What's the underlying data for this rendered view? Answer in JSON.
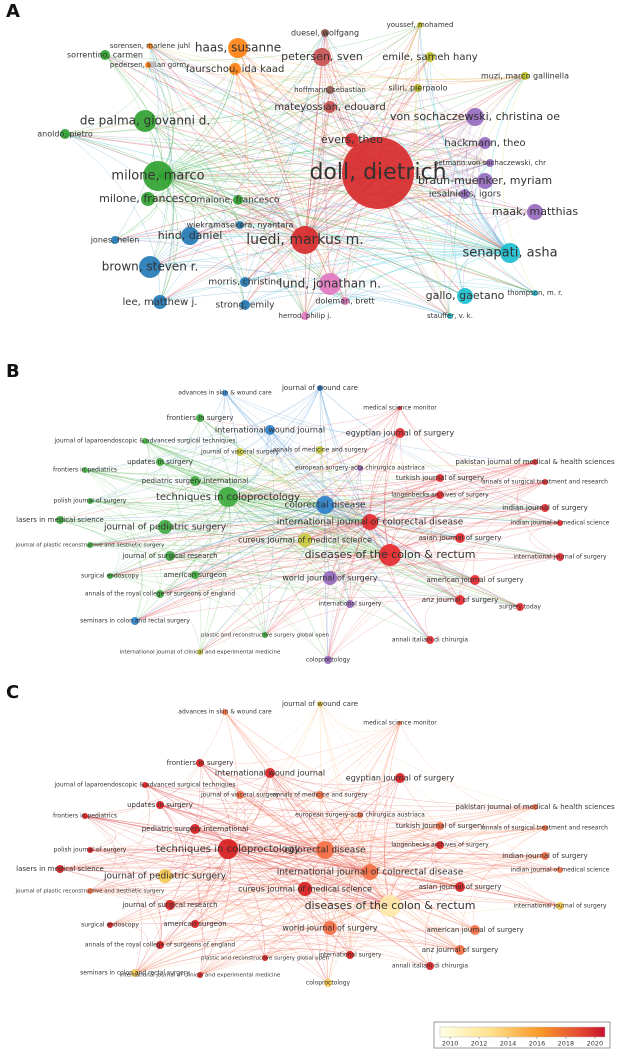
{
  "figure": {
    "panels": [
      {
        "letter": "A",
        "nodes": [
          "doll, dietrich",
          "luedi, markus m.",
          "milone, marco",
          "milone, francesco",
          "de palma, giovanni d.",
          "haas, susanne",
          "faurschou, ida kaad",
          "petersen, sven",
          "mateyossian, edouard",
          "evers, theo",
          "von sochaczewski, christina oe",
          "hackmann, theo",
          "braun-muenker, myriam",
          "iesalnieks, igors",
          "maak, matthias",
          "senapati, asha",
          "gallo, gaetano",
          "lund, jonathan n.",
          "hind, daniel",
          "brown, steven r.",
          "lee, matthew j.",
          "emile, sameh hany",
          "sorrentino, carmen",
          "anoldo, pietro",
          "jones, helen",
          "maione, francesco",
          "morris, christine",
          "strong, emily",
          "wiekramasekera, nyantara",
          "duesel, wolfgang",
          "youssef, mohamed",
          "siliri, pierpaolo",
          "muzi, marco gallinella",
          "oetmann von sochaczewski, chr",
          "thompson, m. r.",
          "doleman, brett",
          "stauffer, v. k.",
          "sorensen, marlene juhl",
          "pedersen, lillian gorm",
          "hoffmann, sebastian",
          "herrod, philip j."
        ]
      },
      {
        "letter": "B",
        "nodes": [
          "journal of wound care",
          "advances in skin & wound care",
          "medical science monitor",
          "frontiers in surgery",
          "international wound journal",
          "egyptian journal of surgery",
          "journal of laparoendoscopic & advanced surgical techniques",
          "journal of visceral surgery",
          "annals of medicine and surgery",
          "frontiers in pediatrics",
          "updates in surgery",
          "pakistan journal of medical & health sciences",
          "european surgery-acta chirurgica austriaca",
          "pediatric surgery international",
          "turkish journal of surgery",
          "annals of surgical treatment and research",
          "techniques in coloproctology",
          "polish journal of surgery",
          "colorectal disease",
          "langenbecks archives of surgery",
          "indian journal of surgery",
          "lasers in medical science",
          "international journal of colorectal disease",
          "journal of pediatric surgery",
          "indian journal of medical science",
          "asian journal of surgery",
          "cureus journal of medical science",
          "journal of plastic reconstructive and aesthetic surgery",
          "journal of surgical research",
          "diseases of the colon & rectum",
          "international journal of surgery",
          "surgical endoscopy",
          "american surgeon",
          "world journal of surgery",
          "american journal of surgery",
          "annals of the royal college of surgeons of england",
          "anz journal of surgery",
          "international surgery",
          "surgery today",
          "seminars in colon and rectal surgery",
          "plastic and reconstructive surgery global open",
          "annali italiani di chirurgia",
          "international journal of clinical and experimental medicine",
          "coloproctology"
        ]
      },
      {
        "letter": "C",
        "nodes": [
          "journal of wound care",
          "advances in skin & wound care",
          "medical science monitor",
          "frontiers in surgery",
          "international wound journal",
          "egyptian journal of surgery",
          "journal of laparoendoscopic & advanced surgical techniques",
          "journal of visceral surgery",
          "annals of medicine and surgery",
          "frontiers in pediatrics",
          "updates in surgery",
          "pakistan journal of medical & health sciences",
          "european surgery-acta chirurgica austriaca",
          "pediatric surgery international",
          "turkish journal of surgery",
          "annals of surgical treatment and research",
          "techniques in coloproctology",
          "polish journal of surgery",
          "colorectal disease",
          "langenbecks archives of surgery",
          "indian journal of surgery",
          "lasers in medical science",
          "international journal of colorectal disease",
          "journal of pediatric surgery",
          "indian journal of medical science",
          "asian journal of surgery",
          "cureus journal of medical science",
          "journal of plastic reconstructive and aesthetic surgery",
          "journal of surgical research",
          "diseases of the colon & rectum",
          "international journal of surgery",
          "surgical endoscopy",
          "american surgeon",
          "world journal of surgery",
          "american journal of surgery",
          "annals of the royal college of surgeons of england",
          "anz journal of surgery",
          "international surgery",
          "seminars in colon and rectal surgery",
          "plastic and reconstructive surgery global open",
          "annali italiani di chirurgia",
          "international journal of clinical and experimental medicine",
          "coloproctology"
        ]
      }
    ],
    "colorbar": {
      "lim": [
        2009.3,
        2020.7
      ],
      "ticks": [
        2010,
        2012,
        2014,
        2016,
        2018,
        2020
      ]
    }
  }
}
